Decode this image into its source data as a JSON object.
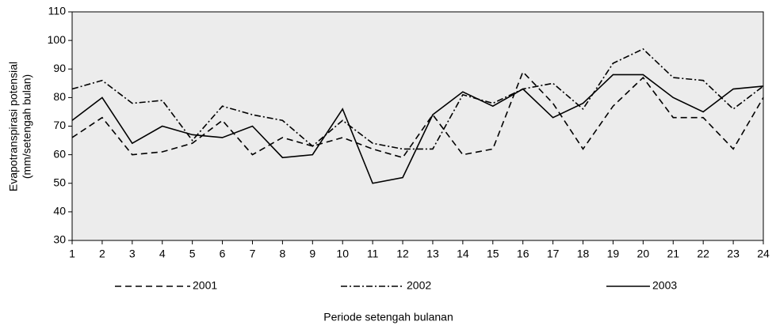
{
  "chart_data": {
    "type": "line",
    "ylabel": [
      "Evapotranspirasi potensial",
      "(mm/setengah bulan)"
    ],
    "xlabel": "Periode setengah bulanan",
    "x": [
      1,
      2,
      3,
      4,
      5,
      6,
      7,
      8,
      9,
      10,
      11,
      12,
      13,
      14,
      15,
      16,
      17,
      18,
      19,
      20,
      21,
      22,
      23,
      24
    ],
    "series": [
      {
        "name": "2001",
        "color": "#000000",
        "dash": "8,5",
        "values": [
          66,
          73,
          60,
          61,
          64,
          72,
          60,
          66,
          63,
          66,
          62,
          59,
          74,
          60,
          62,
          89,
          78,
          62,
          77,
          87,
          73,
          73,
          62,
          80
        ]
      },
      {
        "name": "2002",
        "color": "#000000",
        "dash": "8,3,2,3",
        "values": [
          83,
          86,
          78,
          79,
          65,
          77,
          74,
          72,
          63,
          72,
          64,
          62,
          62,
          81,
          78,
          83,
          85,
          76,
          92,
          97,
          87,
          86,
          76,
          84
        ]
      },
      {
        "name": "2003",
        "color": "#000000",
        "dash": "none",
        "values": [
          72,
          80,
          64,
          70,
          67,
          66,
          70,
          59,
          60,
          76,
          50,
          52,
          74,
          82,
          77,
          83,
          73,
          78,
          88,
          88,
          80,
          75,
          83,
          84
        ]
      }
    ],
    "xlim": [
      1,
      24
    ],
    "xticks": [
      1,
      2,
      3,
      4,
      5,
      6,
      7,
      8,
      9,
      10,
      11,
      12,
      13,
      14,
      15,
      16,
      17,
      18,
      19,
      20,
      21,
      22,
      23,
      24
    ],
    "ylim": [
      30,
      110
    ],
    "yticks": [
      30,
      40,
      50,
      60,
      70,
      80,
      90,
      100,
      110
    ],
    "grid": false,
    "plot_background": "#ececec",
    "legend": "bottom"
  }
}
